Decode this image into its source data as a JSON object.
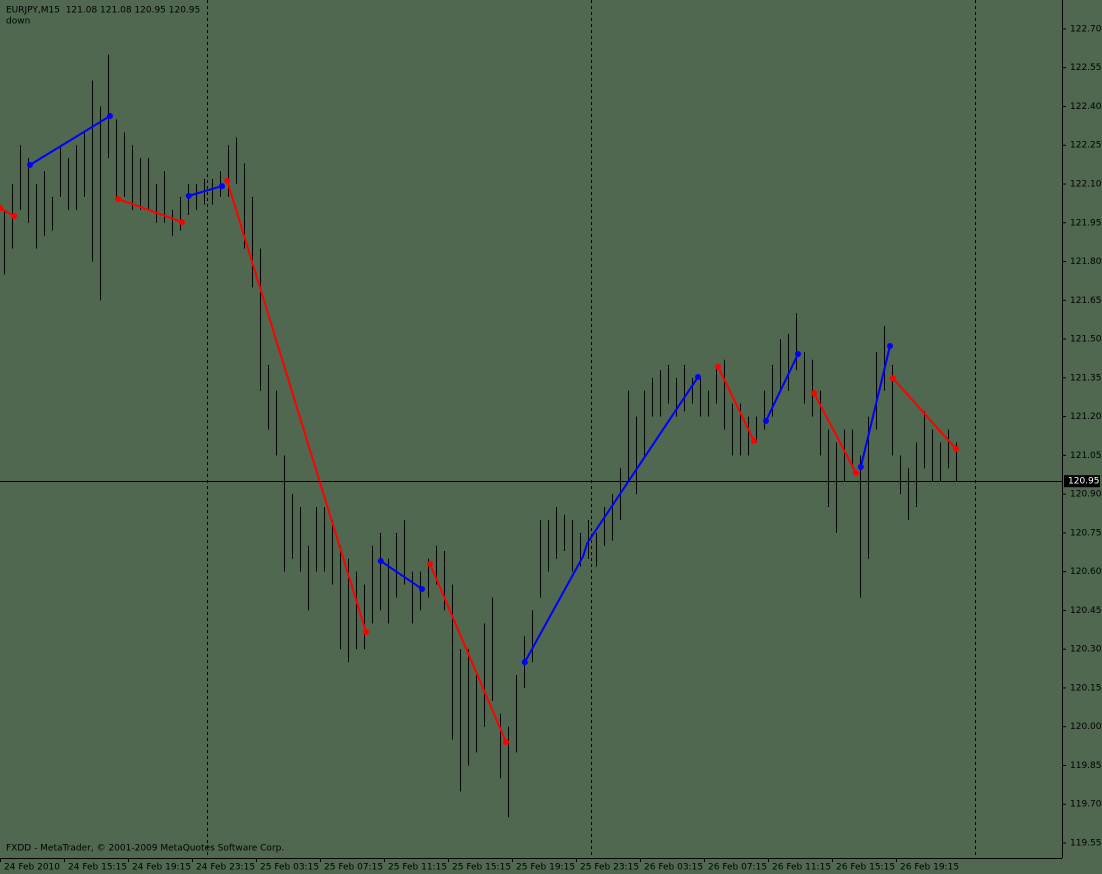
{
  "chart_data": {
    "type": "ohlc",
    "title": "EURJPY,M15  121.08 121.08 120.95 120.95",
    "subtitle": "down",
    "footer": "FXDD - MetaTrader, © 2001-2009 MetaQuotes Software Corp.",
    "background": "#50684f",
    "bar_color": "#000000",
    "ylim": [
      119.492,
      122.812
    ],
    "yticks": [
      {
        "value": 122.7,
        "label": "122.70"
      },
      {
        "value": 122.55,
        "label": "122.55"
      },
      {
        "value": 122.4,
        "label": "122.40"
      },
      {
        "value": 122.25,
        "label": "122.25"
      },
      {
        "value": 122.1,
        "label": "122.10"
      },
      {
        "value": 121.95,
        "label": "121.95"
      },
      {
        "value": 121.8,
        "label": "121.80"
      },
      {
        "value": 121.65,
        "label": "121.65"
      },
      {
        "value": 121.5,
        "label": "121.50"
      },
      {
        "value": 121.35,
        "label": "121.35"
      },
      {
        "value": 121.2,
        "label": "121.20"
      },
      {
        "value": 121.05,
        "label": "121.05"
      },
      {
        "value": 120.9,
        "label": "120.90"
      },
      {
        "value": 120.75,
        "label": "120.75"
      },
      {
        "value": 120.6,
        "label": "120.60"
      },
      {
        "value": 120.45,
        "label": "120.45"
      },
      {
        "value": 120.3,
        "label": "120.30"
      },
      {
        "value": 120.15,
        "label": "120.15"
      },
      {
        "value": 120,
        "label": "120.00"
      },
      {
        "value": 119.85,
        "label": "119.85"
      },
      {
        "value": 119.7,
        "label": "119.70"
      },
      {
        "value": 119.55,
        "label": "119.55"
      }
    ],
    "xlim": [
      0,
      132.75
    ],
    "xticks": [
      {
        "value": 0,
        "label": "24 Feb 2010"
      },
      {
        "value": 8,
        "label": "24 Feb 15:15"
      },
      {
        "value": 16,
        "label": "24 Feb 19:15"
      },
      {
        "value": 24,
        "label": "24 Feb 23:15"
      },
      {
        "value": 32,
        "label": "25 Feb 03:15"
      },
      {
        "value": 40,
        "label": "25 Feb 07:15"
      },
      {
        "value": 48,
        "label": "25 Feb 11:15"
      },
      {
        "value": 56,
        "label": "25 Feb 15:15"
      },
      {
        "value": 64,
        "label": "25 Feb 19:15"
      },
      {
        "value": 72,
        "label": "25 Feb 23:15"
      },
      {
        "value": 80,
        "label": "26 Feb 03:15"
      },
      {
        "value": 88,
        "label": "26 Feb 07:15"
      },
      {
        "value": 96,
        "label": "26 Feb 11:15"
      },
      {
        "value": 104,
        "label": "26 Feb 15:15"
      },
      {
        "value": 112,
        "label": "26 Feb 19:15"
      }
    ],
    "day_separators": [
      25.875,
      73.875,
      121.875
    ],
    "price_line": {
      "value": 120.95,
      "label": "120.95"
    },
    "bars": {
      "high": [
        122.0,
        122.1,
        122.25,
        122.2,
        122.1,
        122.15,
        122.05,
        122.25,
        122.2,
        122.25,
        122.3,
        122.5,
        122.4,
        122.6,
        122.35,
        122.3,
        122.25,
        122.2,
        122.2,
        122.1,
        122.15,
        122.0,
        122.05,
        122.1,
        122.1,
        122.12,
        122.12,
        122.15,
        122.25,
        122.28,
        122.18,
        122.05,
        121.85,
        121.4,
        121.3,
        121.05,
        120.9,
        120.85,
        120.7,
        120.85,
        120.85,
        120.8,
        120.7,
        120.65,
        120.6,
        120.55,
        120.7,
        120.75,
        120.65,
        120.75,
        120.8,
        120.6,
        120.6,
        120.65,
        120.7,
        120.68,
        120.55,
        120.3,
        120.3,
        120.2,
        120.4,
        120.5,
        120.05,
        120.0,
        120.2,
        120.35,
        120.45,
        120.8,
        120.8,
        120.85,
        120.82,
        120.8,
        120.75,
        120.8,
        120.75,
        120.85,
        120.9,
        121.0,
        121.3,
        121.2,
        121.3,
        121.35,
        121.38,
        121.4,
        121.35,
        121.4,
        121.35,
        121.35,
        121.3,
        121.4,
        121.42,
        121.25,
        121.25,
        121.2,
        121.2,
        121.3,
        121.4,
        121.5,
        121.52,
        121.6,
        121.45,
        121.42,
        121.3,
        121.15,
        121.1,
        121.15,
        121.15,
        121.05,
        121.2,
        121.45,
        121.55,
        121.4,
        121.05,
        121.0,
        121.1,
        121.22,
        121.15,
        121.1,
        121.15,
        121.1
      ],
      "low": [
        121.75,
        121.85,
        122.0,
        121.95,
        121.85,
        121.9,
        121.92,
        122.05,
        122.0,
        122.0,
        122.05,
        121.8,
        121.65,
        122.2,
        122.05,
        122.05,
        122.0,
        122.0,
        122.0,
        121.95,
        121.95,
        121.9,
        121.92,
        121.98,
        122.0,
        122.02,
        122.02,
        122.05,
        122.05,
        122.1,
        121.85,
        121.7,
        121.3,
        121.15,
        121.05,
        120.6,
        120.65,
        120.6,
        120.45,
        120.6,
        120.6,
        120.55,
        120.3,
        120.25,
        120.3,
        120.3,
        120.4,
        120.45,
        120.4,
        120.5,
        120.55,
        120.4,
        120.45,
        120.5,
        120.55,
        120.45,
        119.95,
        119.75,
        119.85,
        119.9,
        120.0,
        120.1,
        119.8,
        119.65,
        119.9,
        120.15,
        120.25,
        120.5,
        120.6,
        120.65,
        120.68,
        120.6,
        120.62,
        120.65,
        120.62,
        120.7,
        120.72,
        120.8,
        120.95,
        120.9,
        121.05,
        121.2,
        121.2,
        121.25,
        121.2,
        121.22,
        121.25,
        121.2,
        121.2,
        121.25,
        121.15,
        121.05,
        121.05,
        121.05,
        121.1,
        121.15,
        121.2,
        121.3,
        121.3,
        121.38,
        121.25,
        121.2,
        121.05,
        120.85,
        120.75,
        120.95,
        121.0,
        120.5,
        120.65,
        121.15,
        121.3,
        121.05,
        120.9,
        120.8,
        120.85,
        121.0,
        120.95,
        120.95,
        121.0,
        120.95
      ]
    },
    "segments": [
      {
        "color": "#ff0000",
        "x": [
          0,
          1.75
        ],
        "values": [
          122.007,
          121.976
        ]
      },
      {
        "color": "#0000ff",
        "x": [
          3.75,
          13.75
        ],
        "values": [
          122.174,
          122.363
        ]
      },
      {
        "color": "#ff0000",
        "x": [
          14.75,
          22.75
        ],
        "values": [
          122.042,
          121.953
        ]
      },
      {
        "color": "#0000ff",
        "x": [
          23.6,
          27.75
        ],
        "values": [
          122.054,
          122.092
        ]
      },
      {
        "color": "#ff0000",
        "x": [
          28.4,
          45.75
        ],
        "values": [
          122.112,
          120.366
        ]
      },
      {
        "color": "#0000ff",
        "x": [
          47.6,
          52.75
        ],
        "values": [
          120.641,
          120.533
        ]
      },
      {
        "color": "#ff0000",
        "x": [
          53.75,
          63.25
        ],
        "values": [
          120.63,
          119.941
        ]
      },
      {
        "color": "#0000ff",
        "x": [
          65.6,
          72.9,
          73.4,
          87.25
        ],
        "values": [
          120.25,
          120.66,
          120.71,
          121.353
        ]
      },
      {
        "color": "#ff0000",
        "x": [
          89.75,
          94.25
        ],
        "values": [
          121.393,
          121.106
        ]
      },
      {
        "color": "#0000ff",
        "x": [
          95.75,
          99.75
        ],
        "values": [
          121.183,
          121.442
        ]
      },
      {
        "color": "#ff0000",
        "x": [
          101.75,
          107
        ],
        "values": [
          121.291,
          120.982
        ]
      },
      {
        "color": "#0000ff",
        "x": [
          107.6,
          111.25
        ],
        "values": [
          121.005,
          121.473
        ]
      },
      {
        "color": "#ff0000",
        "x": [
          111.6,
          119.5
        ],
        "values": [
          121.349,
          121.075
        ]
      }
    ]
  }
}
